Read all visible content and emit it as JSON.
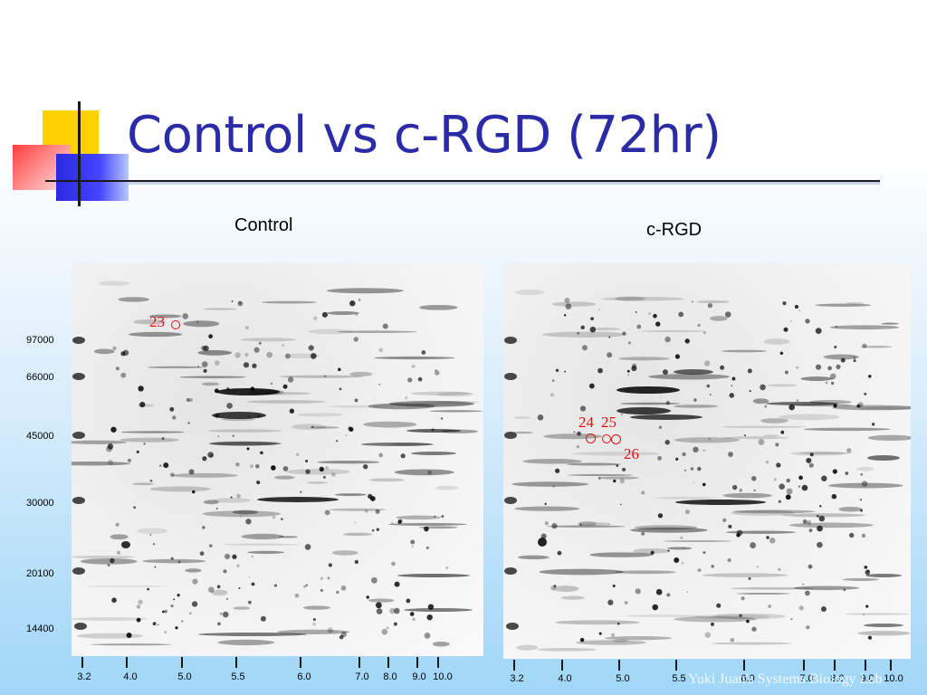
{
  "slide": {
    "title": "Control vs c-RGD (72hr)",
    "footer": "Yuki Juan's Systems Biology Lab"
  },
  "panels": {
    "control": {
      "label": "Control",
      "spot_labels": [
        "23"
      ]
    },
    "crgd": {
      "label": "c-RGD",
      "spot_labels": [
        "24",
        "25",
        "26"
      ]
    }
  },
  "mw_axis": [
    "97000",
    "66000",
    "45000",
    "30000",
    "20100",
    "14400"
  ],
  "ph_axis": {
    "control": [
      "3.2",
      "4.0",
      "5.0",
      "5.5",
      "6.0",
      "7.0",
      "8.0",
      "9.0",
      "10.0"
    ],
    "crgd": [
      "3.2",
      "4.0",
      "5.0",
      "5.5",
      "6.0",
      "7.0",
      "8.0",
      "9.0",
      "10.0"
    ]
  },
  "colors": {
    "title": "#2b2ba8",
    "annotation": "#e01010",
    "accent_yellow": "#ffd200",
    "accent_blue": "#3333ff",
    "accent_red": "#ff3b3b"
  }
}
